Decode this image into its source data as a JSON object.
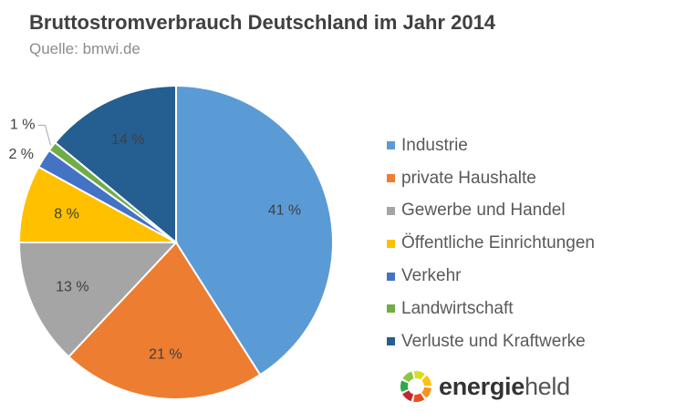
{
  "header": {
    "title": "Bruttostromverbrauch Deutschland im Jahr 2014",
    "source": "Quelle: bmwi.de"
  },
  "chart_data": {
    "type": "pie",
    "title": "Bruttostromverbrauch Deutschland im Jahr 2014",
    "categories": [
      "Industrie",
      "private Haushalte",
      "Gewerbe und Handel",
      "Öffentliche Einrichtungen",
      "Verkehr",
      "Landwirtschaft",
      "Verluste und Kraftwerke"
    ],
    "values": [
      41,
      21,
      13,
      8,
      2,
      1,
      14
    ],
    "labels": [
      "41 %",
      "21 %",
      "13 %",
      "8 %",
      "2 %",
      "1 %",
      "14 %"
    ],
    "colors": [
      "#5b9bd5",
      "#ed7d31",
      "#a5a5a5",
      "#ffc000",
      "#4472c4",
      "#70ad47",
      "#255e91"
    ],
    "legend_position": "right"
  },
  "brand": {
    "name_bold": "energie",
    "name_rest": "held",
    "logo_colors": [
      "#2ea84a",
      "#8cc63f",
      "#d7df23",
      "#ffc20e",
      "#f7941d",
      "#e94e1b",
      "#c1272d"
    ]
  }
}
